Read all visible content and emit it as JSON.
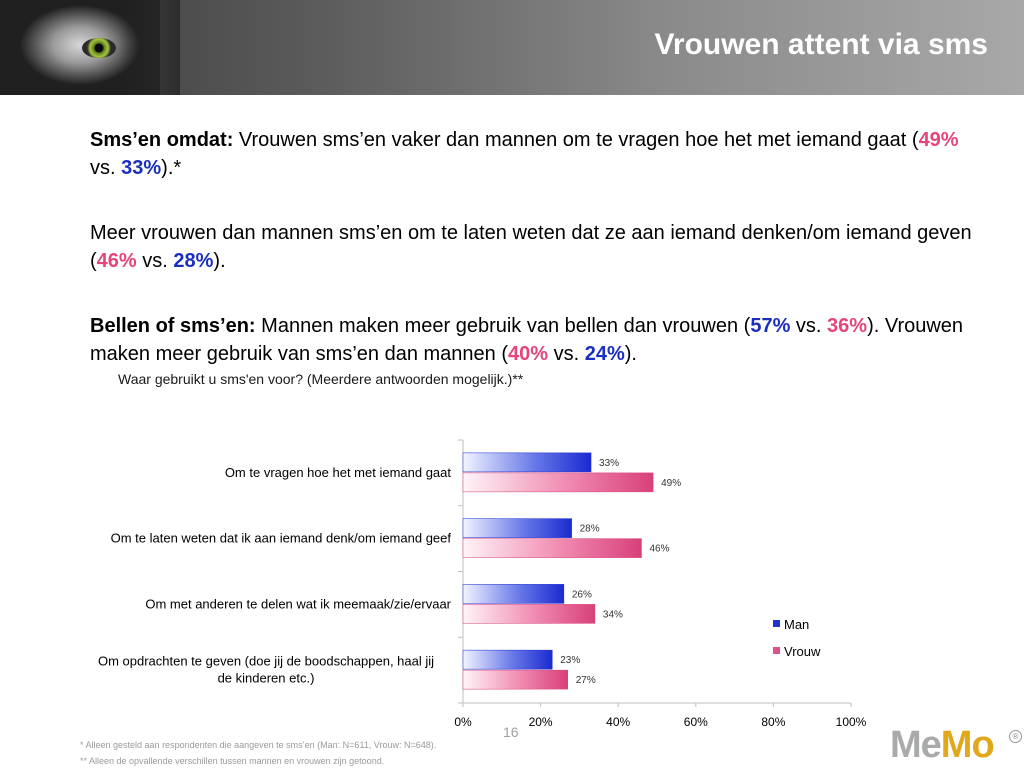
{
  "header": {
    "title": "Vrouwen attent via sms"
  },
  "paragraphs": {
    "p1": {
      "lead": "Sms’en omdat:",
      "text": " Vrouwen sms’en vaker dan mannen om te vragen hoe het met iemand gaat (",
      "v1": "49%",
      "mid": " vs. ",
      "v2": "33%",
      "end": ").*"
    },
    "p2": {
      "text": "Meer vrouwen dan mannen sms’en om te laten weten dat ze aan iemand denken/om iemand geven (",
      "v1": "46%",
      "mid": " vs. ",
      "v2": "28%",
      "end": ")."
    },
    "p3": {
      "lead": "Bellen of sms’en:",
      "text": " Mannen maken meer gebruik van bellen dan vrouwen (",
      "v1": "57%",
      "mid": " vs. ",
      "v2": "36%",
      "text2": "). Vrouwen maken meer gebruik van sms’en dan mannen (",
      "v3": "40%",
      "mid2": " vs. ",
      "v4": "24%",
      "end": ")."
    }
  },
  "question": "Waar gebruikt u sms'en voor? (Meerdere antwoorden mogelijk.)**",
  "chart_data": {
    "type": "bar",
    "orientation": "horizontal",
    "categories": [
      "Om te vragen hoe het met iemand gaat",
      "Om te laten weten dat ik aan iemand denk/om iemand geef",
      "Om met anderen te delen wat ik meemaak/zie/ervaar",
      "Om opdrachten te geven (doe jij de boodschappen, haal jij de kinderen etc.)"
    ],
    "series": [
      {
        "name": "Man",
        "values": [
          33,
          28,
          26,
          23
        ],
        "color": "#2233cc"
      },
      {
        "name": "Vrouw",
        "values": [
          49,
          46,
          34,
          27
        ],
        "color": "#e0508a"
      }
    ],
    "xlim": [
      0,
      100
    ],
    "xticks": [
      "0%",
      "20%",
      "40%",
      "60%",
      "80%",
      "100%"
    ],
    "value_suffix": "%",
    "legend": "right",
    "grid": false
  },
  "footnotes": {
    "f1": "* Alleen gesteld aan respondenten die aangeven te sms’en (Man: N=611, Vrouw: N=648).",
    "f2": "** Alleen de opvallende verschillen tussen mannen en vrouwen zijn getoond."
  },
  "page_number": "16",
  "logo": {
    "part1": "Me",
    "part2": "Mo",
    "reg": "®"
  }
}
